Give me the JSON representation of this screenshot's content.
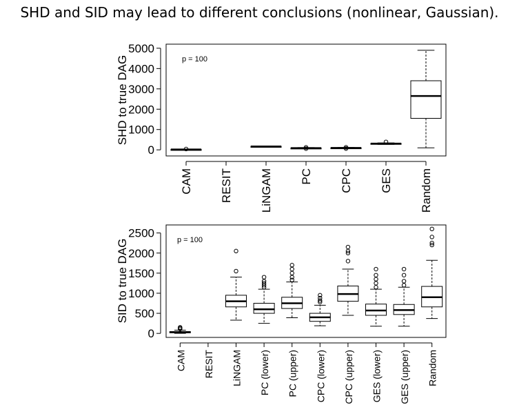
{
  "slide": {
    "title": "SHD and SID may lead to different conclusions (nonlinear, Gaussian)."
  },
  "chart_data": [
    {
      "type": "box",
      "ylabel": "SHD to true DAG",
      "annotation": "p = 100",
      "ylim": [
        -300,
        5200
      ],
      "yticks": [
        0,
        1000,
        2000,
        3000,
        4000,
        5000
      ],
      "categories": [
        "CAM",
        "RESIT",
        "LiNGAM",
        "PC",
        "CPC",
        "GES",
        "Random"
      ],
      "boxes": [
        {
          "min": 5,
          "q1": 12,
          "median": 18,
          "q3": 25,
          "max": 35,
          "outliers": [
            40
          ]
        },
        null,
        {
          "min": 140,
          "q1": 155,
          "median": 165,
          "q3": 175,
          "max": 185,
          "outliers": []
        },
        {
          "min": 60,
          "q1": 75,
          "median": 85,
          "q3": 95,
          "max": 110,
          "outliers": [
            60,
            120
          ]
        },
        {
          "min": 70,
          "q1": 85,
          "median": 95,
          "q3": 105,
          "max": 115,
          "outliers": [
            65,
            125
          ]
        },
        {
          "min": 270,
          "q1": 290,
          "median": 305,
          "q3": 320,
          "max": 340,
          "outliers": [
            390
          ]
        },
        {
          "min": 100,
          "q1": 1550,
          "median": 2650,
          "q3": 3400,
          "max": 4900,
          "outliers": []
        }
      ]
    },
    {
      "type": "box",
      "ylabel": "SID to true DAG",
      "annotation": "p = 100",
      "ylim": [
        -100,
        2700
      ],
      "yticks": [
        0,
        500,
        1000,
        1500,
        2000,
        2500
      ],
      "categories": [
        "CAM",
        "RESIT",
        "LiNGAM",
        "PC (lower)",
        "PC (upper)",
        "CPC (lower)",
        "CPC (upper)",
        "GES (lower)",
        "GES (upper)",
        "Random"
      ],
      "boxes": [
        {
          "min": 0,
          "q1": 15,
          "median": 30,
          "q3": 45,
          "max": 80,
          "outliers": [
            110,
            130,
            150
          ]
        },
        null,
        {
          "min": 330,
          "q1": 660,
          "median": 800,
          "q3": 950,
          "max": 1400,
          "outliers": [
            1550,
            2050
          ]
        },
        {
          "min": 250,
          "q1": 500,
          "median": 600,
          "q3": 750,
          "max": 1100,
          "outliers": [
            1150,
            1200,
            1250,
            1300,
            1400
          ]
        },
        {
          "min": 390,
          "q1": 620,
          "median": 750,
          "q3": 900,
          "max": 1280,
          "outliers": [
            1330,
            1400,
            1500,
            1600,
            1700
          ]
        },
        {
          "min": 190,
          "q1": 300,
          "median": 400,
          "q3": 500,
          "max": 700,
          "outliers": [
            780,
            820,
            880,
            950
          ]
        },
        {
          "min": 450,
          "q1": 800,
          "median": 980,
          "q3": 1180,
          "max": 1600,
          "outliers": [
            1800,
            2000,
            2050,
            2150
          ]
        },
        {
          "min": 180,
          "q1": 450,
          "median": 570,
          "q3": 730,
          "max": 1100,
          "outliers": [
            1150,
            1250,
            1350,
            1450,
            1600
          ]
        },
        {
          "min": 180,
          "q1": 470,
          "median": 580,
          "q3": 720,
          "max": 1150,
          "outliers": [
            1200,
            1300,
            1450,
            1600
          ]
        },
        {
          "min": 370,
          "q1": 660,
          "median": 900,
          "q3": 1170,
          "max": 1820,
          "outliers": [
            2200,
            2250,
            2400,
            2600
          ]
        }
      ]
    }
  ]
}
